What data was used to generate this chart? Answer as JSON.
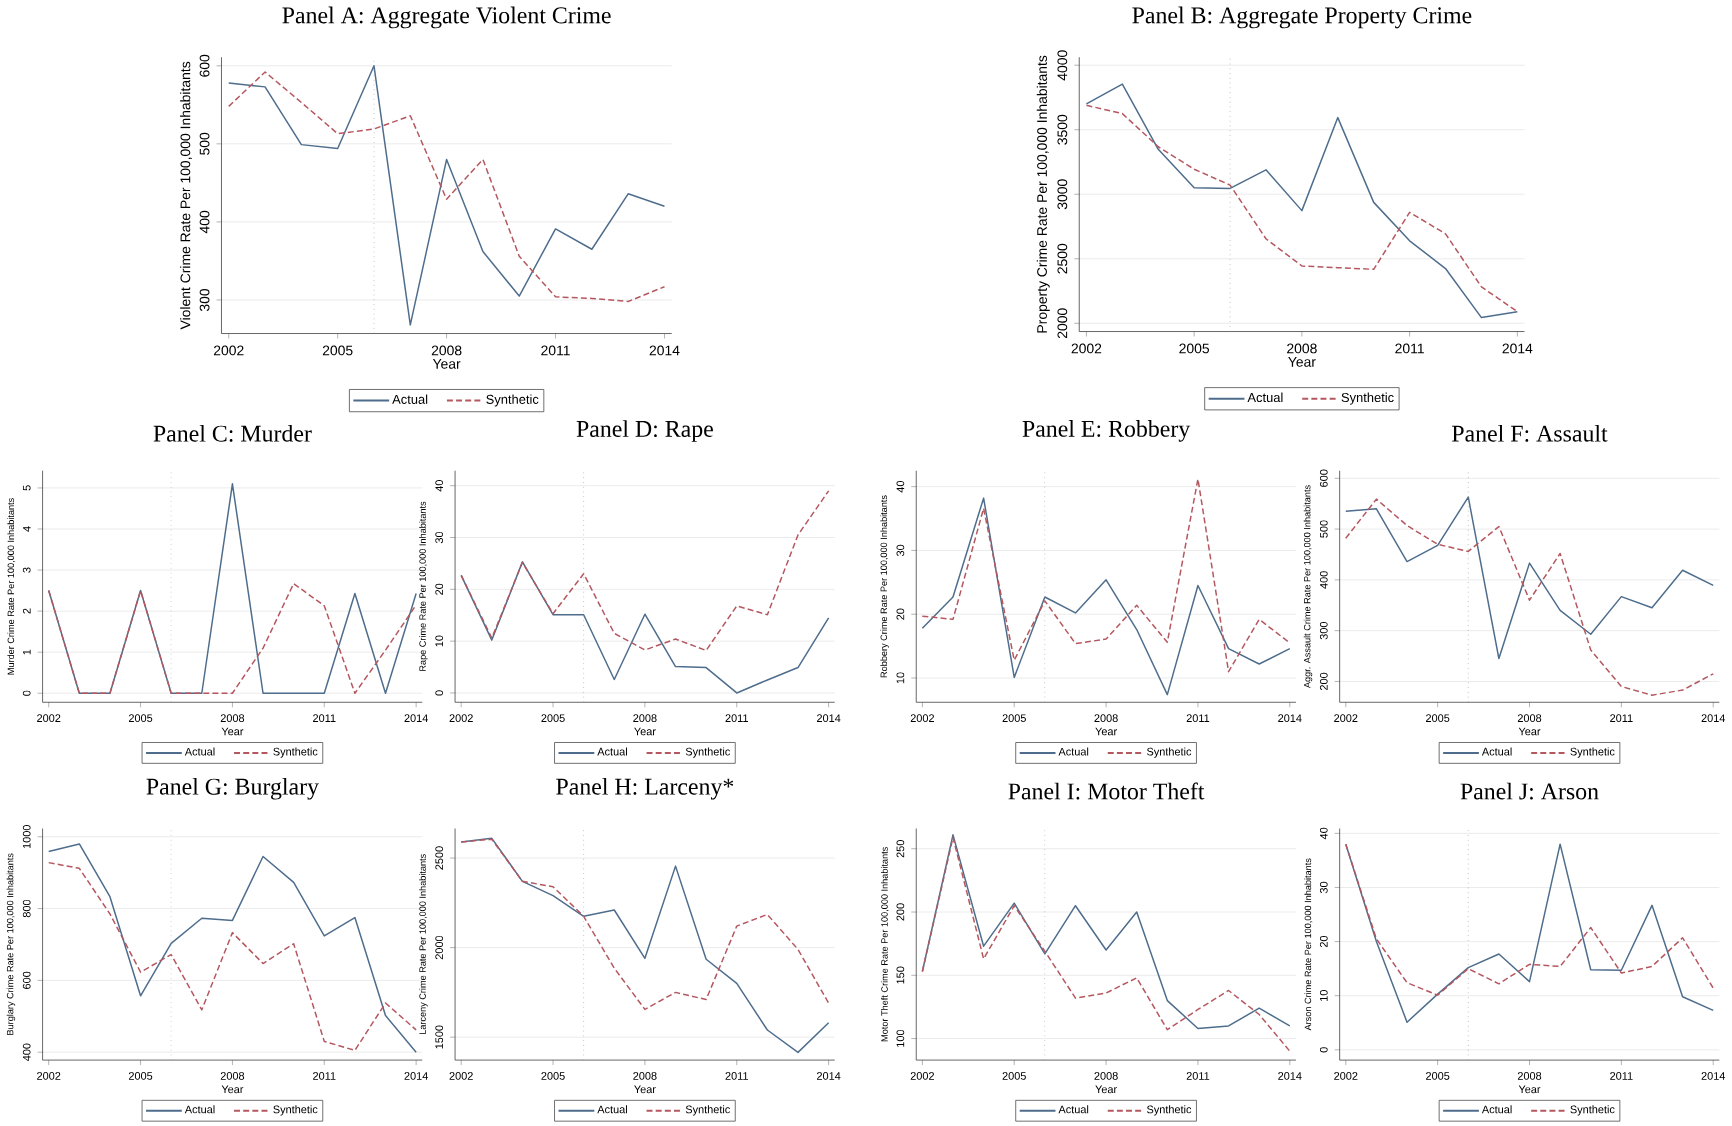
{
  "chart_data": [
    {
      "type": "line",
      "title": "Panel A: Aggregate Violent Crime",
      "xlabel": "Year",
      "ylabel": "Violent Crime Rate Per 100,000 Inhabitants",
      "x": [
        2002,
        2003,
        2004,
        2005,
        2006,
        2007,
        2008,
        2009,
        2010,
        2011,
        2012,
        2013,
        2014
      ],
      "xlim": [
        2001.8,
        2014.2
      ],
      "xticks": [
        2002,
        2005,
        2008,
        2011,
        2014
      ],
      "ylim": [
        257,
        611
      ],
      "yticks": [
        300,
        400,
        500,
        600
      ],
      "grid": "y",
      "legend": "bottom",
      "ref_lines": [
        {
          "axis": "x",
          "value": 2006,
          "line_style": "dotted",
          "color": "#a0a0a0"
        }
      ],
      "series": [
        {
          "name": "Actual",
          "color": "#4e6d8c",
          "line_style": "solid",
          "values": [
            578,
            573,
            499,
            494,
            600,
            268,
            480,
            362,
            305,
            391,
            365,
            436,
            420
          ]
        },
        {
          "name": "Synthetic",
          "color": "#b5575f",
          "line_style": "dashed",
          "values": [
            548,
            592,
            553,
            513,
            519,
            536,
            429,
            480,
            356,
            304,
            302,
            298,
            317
          ]
        }
      ]
    },
    {
      "type": "line",
      "title": "Panel B: Aggregate Property Crime",
      "xlabel": "Year",
      "ylabel": "Property Crime Rate Per 100,000 Inhabitants",
      "x": [
        2002,
        2003,
        2004,
        2005,
        2006,
        2007,
        2008,
        2009,
        2010,
        2011,
        2012,
        2013,
        2014
      ],
      "xlim": [
        2001.8,
        2014.2
      ],
      "xticks": [
        2002,
        2005,
        2008,
        2011,
        2014
      ],
      "ylim": [
        1936,
        4062
      ],
      "yticks": [
        2000,
        2500,
        3000,
        3500,
        4000
      ],
      "grid": "y",
      "legend": "bottom",
      "ref_lines": [
        {
          "axis": "x",
          "value": 2006,
          "line_style": "dotted",
          "color": "#a0a0a0"
        }
      ],
      "series": [
        {
          "name": "Actual",
          "color": "#4e6d8c",
          "line_style": "solid",
          "values": [
            3700,
            3854,
            3348,
            3050,
            3045,
            3189,
            2873,
            3594,
            2937,
            2639,
            2424,
            2044,
            2090
          ]
        },
        {
          "name": "Synthetic",
          "color": "#b5575f",
          "line_style": "dashed",
          "values": [
            3689,
            3625,
            3368,
            3194,
            3071,
            2655,
            2444,
            2431,
            2418,
            2860,
            2693,
            2282,
            2090
          ]
        }
      ]
    },
    {
      "type": "line",
      "title": "Panel C: Murder",
      "xlabel": "Year",
      "ylabel": "Murder Crime Rate Per 100,000 Inhabitants",
      "x": [
        2002,
        2003,
        2004,
        2005,
        2006,
        2007,
        2008,
        2009,
        2010,
        2011,
        2012,
        2013,
        2014
      ],
      "xlim": [
        2001.8,
        2014.2
      ],
      "xticks": [
        2002,
        2005,
        2008,
        2011,
        2014
      ],
      "ylim": [
        -0.22,
        5.42
      ],
      "yticks": [
        0,
        1,
        2,
        3,
        4,
        5
      ],
      "grid": "y",
      "legend": "bottom",
      "ref_lines": [
        {
          "axis": "x",
          "value": 2006,
          "line_style": "dotted",
          "color": "#a0a0a0"
        }
      ],
      "series": [
        {
          "name": "Actual",
          "color": "#4e6d8c",
          "line_style": "solid",
          "values": [
            2.5,
            0,
            0,
            2.5,
            0,
            0,
            5.1,
            0,
            0,
            0,
            2.43,
            0,
            2.43
          ]
        },
        {
          "name": "Synthetic",
          "color": "#b5575f",
          "line_style": "dashed",
          "values": [
            2.5,
            0,
            0,
            2.5,
            0,
            0,
            0,
            1.1,
            2.67,
            2.13,
            0,
            1.05,
            2.15
          ]
        }
      ]
    },
    {
      "type": "line",
      "title": "Panel D: Rape",
      "xlabel": "Year",
      "ylabel": "Rape Crime Rate Per 100,000 Inhabitants",
      "x": [
        2002,
        2003,
        2004,
        2005,
        2006,
        2007,
        2008,
        2009,
        2010,
        2011,
        2012,
        2013,
        2014
      ],
      "xlim": [
        2001.8,
        2014.2
      ],
      "xticks": [
        2002,
        2005,
        2008,
        2011,
        2014
      ],
      "ylim": [
        -1.8,
        42.9
      ],
      "yticks": [
        0,
        10,
        20,
        30,
        40
      ],
      "grid": "y",
      "legend": "bottom",
      "ref_lines": [
        {
          "axis": "x",
          "value": 2006,
          "line_style": "dotted",
          "color": "#a0a0a0"
        }
      ],
      "series": [
        {
          "name": "Actual",
          "color": "#4e6d8c",
          "line_style": "solid",
          "values": [
            22.7,
            10.2,
            25.3,
            15.1,
            15.1,
            2.6,
            15.2,
            5.1,
            4.9,
            0,
            2.5,
            4.9,
            14.5
          ]
        },
        {
          "name": "Synthetic",
          "color": "#b5575f",
          "line_style": "dashed",
          "values": [
            22.7,
            10.6,
            25.2,
            15.3,
            23,
            11.5,
            8.3,
            10.4,
            8.2,
            16.8,
            15.1,
            30.5,
            39
          ]
        }
      ]
    },
    {
      "type": "line",
      "title": "Panel E: Robbery",
      "xlabel": "Year",
      "ylabel": "Robbery Crime Rate Per 100,000 Inhabitants",
      "x": [
        2002,
        2003,
        2004,
        2005,
        2006,
        2007,
        2008,
        2009,
        2010,
        2011,
        2012,
        2013,
        2014
      ],
      "xlim": [
        2001.8,
        2014.2
      ],
      "xticks": [
        2002,
        2005,
        2008,
        2011,
        2014
      ],
      "ylim": [
        6.2,
        42.5
      ],
      "yticks": [
        10,
        20,
        30,
        40
      ],
      "grid": "y",
      "legend": "bottom",
      "ref_lines": [
        {
          "axis": "x",
          "value": 2006,
          "line_style": "dotted",
          "color": "#a0a0a0"
        }
      ],
      "series": [
        {
          "name": "Actual",
          "color": "#4e6d8c",
          "line_style": "solid",
          "values": [
            17.8,
            22.7,
            38.2,
            10.1,
            22.7,
            20.2,
            25.4,
            17.6,
            7.4,
            24.5,
            14.6,
            12.2,
            14.6
          ]
        },
        {
          "name": "Synthetic",
          "color": "#b5575f",
          "line_style": "dashed",
          "values": [
            19.7,
            19.2,
            36.6,
            12.8,
            22.1,
            15.4,
            16.1,
            21.4,
            15.6,
            41.2,
            11,
            19.2,
            15.5
          ]
        }
      ]
    },
    {
      "type": "line",
      "title": "Panel F: Assault",
      "xlabel": "Year",
      "ylabel": "Aggr. Assault Crime Rate Per 100,000 Inhabitants",
      "x": [
        2002,
        2003,
        2004,
        2005,
        2006,
        2007,
        2008,
        2009,
        2010,
        2011,
        2012,
        2013,
        2014
      ],
      "xlim": [
        2001.8,
        2014.2
      ],
      "xticks": [
        2002,
        2005,
        2008,
        2011,
        2014
      ],
      "ylim": [
        159,
        615
      ],
      "yticks": [
        200,
        300,
        400,
        500,
        600
      ],
      "grid": "y",
      "legend": "bottom",
      "ref_lines": [
        {
          "axis": "x",
          "value": 2006,
          "line_style": "dotted",
          "color": "#a0a0a0"
        }
      ],
      "series": [
        {
          "name": "Actual",
          "color": "#4e6d8c",
          "line_style": "solid",
          "values": [
            535,
            540,
            436,
            468,
            563,
            245,
            433,
            340,
            293,
            367,
            345,
            419,
            389
          ]
        },
        {
          "name": "Synthetic",
          "color": "#b5575f",
          "line_style": "dashed",
          "values": [
            482,
            559,
            507,
            470,
            456,
            505,
            360,
            452,
            262,
            190,
            173,
            183,
            215
          ]
        }
      ]
    },
    {
      "type": "line",
      "title": "Panel G: Burglary",
      "xlabel": "Year",
      "ylabel": "Burglary Crime Rate Per 100,000 Inhabitants",
      "x": [
        2002,
        2003,
        2004,
        2005,
        2006,
        2007,
        2008,
        2009,
        2010,
        2011,
        2012,
        2013,
        2014
      ],
      "xlim": [
        2001.8,
        2014.2
      ],
      "xticks": [
        2002,
        2005,
        2008,
        2011,
        2014
      ],
      "ylim": [
        378,
        1023
      ],
      "yticks": [
        400,
        600,
        800,
        1000
      ],
      "grid": "y",
      "legend": "bottom",
      "ref_lines": [
        {
          "axis": "x",
          "value": 2006,
          "line_style": "dotted",
          "color": "#a0a0a0"
        }
      ],
      "series": [
        {
          "name": "Actual",
          "color": "#4e6d8c",
          "line_style": "solid",
          "values": [
            959,
            980,
            833,
            557,
            703,
            773,
            767,
            945,
            873,
            724,
            775,
            502,
            400
          ]
        },
        {
          "name": "Synthetic",
          "color": "#b5575f",
          "line_style": "dashed",
          "values": [
            928,
            912,
            785,
            623,
            672,
            518,
            733,
            647,
            702,
            430,
            405,
            537,
            462
          ]
        }
      ]
    },
    {
      "type": "line",
      "title": "Panel H: Larceny*",
      "xlabel": "Year",
      "ylabel": "Larceny Crime Rate Per 100,000 Inhabitants",
      "x": [
        2002,
        2003,
        2004,
        2005,
        2006,
        2007,
        2008,
        2009,
        2010,
        2011,
        2012,
        2013,
        2014
      ],
      "xlim": [
        2001.8,
        2014.2
      ],
      "xticks": [
        2002,
        2005,
        2008,
        2011,
        2014
      ],
      "ylim": [
        1372,
        2665
      ],
      "yticks": [
        1500,
        2000,
        2500
      ],
      "grid": "y",
      "legend": "bottom",
      "ref_lines": [
        {
          "axis": "x",
          "value": 2006,
          "line_style": "dotted",
          "color": "#a0a0a0"
        }
      ],
      "series": [
        {
          "name": "Actual",
          "color": "#4e6d8c",
          "line_style": "solid",
          "values": [
            2590,
            2610,
            2370,
            2290,
            2175,
            2210,
            1940,
            2455,
            1935,
            1800,
            1540,
            1415,
            1580
          ]
        },
        {
          "name": "Synthetic",
          "color": "#b5575f",
          "line_style": "dashed",
          "values": [
            2590,
            2605,
            2370,
            2340,
            2175,
            1885,
            1655,
            1750,
            1710,
            2120,
            2185,
            1990,
            1690
          ]
        }
      ]
    },
    {
      "type": "line",
      "title": "Panel I: Motor Theft",
      "xlabel": "Year",
      "ylabel": "Motor Theft Crime Rate Per 100,000 Inhabitants",
      "x": [
        2002,
        2003,
        2004,
        2005,
        2006,
        2007,
        2008,
        2009,
        2010,
        2011,
        2012,
        2013,
        2014
      ],
      "xlim": [
        2001.8,
        2014.2
      ],
      "xticks": [
        2002,
        2005,
        2008,
        2011,
        2014
      ],
      "ylim": [
        83,
        266
      ],
      "yticks": [
        100,
        150,
        200,
        250
      ],
      "grid": "y",
      "legend": "bottom",
      "ref_lines": [
        {
          "axis": "x",
          "value": 2006,
          "line_style": "dotted",
          "color": "#a0a0a0"
        }
      ],
      "series": [
        {
          "name": "Actual",
          "color": "#4e6d8c",
          "line_style": "solid",
          "values": [
            153,
            261,
            173,
            207,
            167,
            205,
            170,
            200,
            130,
            108,
            110,
            124,
            110
          ]
        },
        {
          "name": "Synthetic",
          "color": "#b5575f",
          "line_style": "dashed",
          "values": [
            153,
            259,
            163,
            205,
            169,
            132,
            136,
            148,
            107,
            123,
            138,
            119,
            90
          ]
        }
      ]
    },
    {
      "type": "line",
      "title": "Panel J: Arson",
      "xlabel": "Year",
      "ylabel": "Arson Crime Rate Per 100,000 Inhabitants",
      "x": [
        2002,
        2003,
        2004,
        2005,
        2006,
        2007,
        2008,
        2009,
        2010,
        2011,
        2012,
        2013,
        2014
      ],
      "xlim": [
        2001.8,
        2014.2
      ],
      "xticks": [
        2002,
        2005,
        2008,
        2011,
        2014
      ],
      "ylim": [
        -1.9,
        40.9
      ],
      "yticks": [
        0,
        10,
        20,
        30,
        40
      ],
      "grid": "y",
      "legend": "bottom",
      "ref_lines": [
        {
          "axis": "x",
          "value": 2006,
          "line_style": "dotted",
          "color": "#a0a0a0"
        }
      ],
      "series": [
        {
          "name": "Actual",
          "color": "#4e6d8c",
          "line_style": "solid",
          "values": [
            38,
            20,
            5.1,
            10.3,
            15.2,
            17.7,
            12.6,
            38,
            14.8,
            14.7,
            26.7,
            9.8,
            7.3
          ]
        },
        {
          "name": "Synthetic",
          "color": "#b5575f",
          "line_style": "dashed",
          "values": [
            38,
            20.5,
            12.4,
            10.1,
            15,
            12.2,
            15.8,
            15.4,
            22.6,
            14.2,
            15.4,
            20.7,
            11.4
          ]
        }
      ]
    }
  ]
}
